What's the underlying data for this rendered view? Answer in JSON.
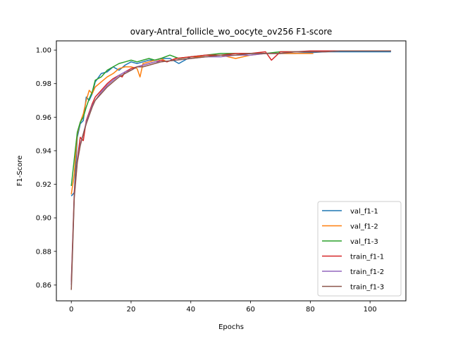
{
  "chart_data": {
    "type": "line",
    "title": "ovary-Antral_follicle_wo_oocyte_ov256 F1-score",
    "xlabel": "Epochs",
    "ylabel": "F1-Score",
    "xlim": [
      -5,
      112
    ],
    "ylim": [
      0.8505,
      1.0055
    ],
    "x_ticks": [
      0,
      20,
      40,
      60,
      80,
      100
    ],
    "x_tick_labels": [
      "0",
      "20",
      "40",
      "60",
      "80",
      "100"
    ],
    "y_ticks": [
      0.86,
      0.88,
      0.9,
      0.92,
      0.94,
      0.96,
      0.98,
      1.0
    ],
    "y_tick_labels": [
      "0.86",
      "0.88",
      "0.90",
      "0.92",
      "0.94",
      "0.96",
      "0.98",
      "1.00"
    ],
    "grid": false,
    "legend_position": "lower right",
    "series": [
      {
        "name": "val_f1-1",
        "color": "#1f77b4",
        "points": [
          [
            0,
            0.913
          ],
          [
            1,
            0.915
          ],
          [
            2,
            0.948
          ],
          [
            3,
            0.956
          ],
          [
            4,
            0.958
          ],
          [
            5,
            0.972
          ],
          [
            6,
            0.97
          ],
          [
            7,
            0.974
          ],
          [
            8,
            0.981
          ],
          [
            10,
            0.986
          ],
          [
            12,
            0.987
          ],
          [
            14,
            0.99
          ],
          [
            16,
            0.988
          ],
          [
            18,
            0.991
          ],
          [
            20,
            0.993
          ],
          [
            22,
            0.992
          ],
          [
            24,
            0.993
          ],
          [
            26,
            0.994
          ],
          [
            28,
            0.994
          ],
          [
            30,
            0.995
          ],
          [
            33,
            0.995
          ],
          [
            36,
            0.992
          ],
          [
            40,
            0.996
          ],
          [
            45,
            0.996
          ],
          [
            50,
            0.997
          ],
          [
            55,
            0.997
          ],
          [
            60,
            0.998
          ],
          [
            65,
            0.998
          ],
          [
            70,
            0.998
          ],
          [
            75,
            0.998
          ],
          [
            80,
            0.9985
          ],
          [
            85,
            0.999
          ],
          [
            90,
            0.999
          ],
          [
            95,
            0.999
          ],
          [
            100,
            0.999
          ],
          [
            107,
            0.999
          ]
        ]
      },
      {
        "name": "val_f1-2",
        "color": "#ff7f0e",
        "points": [
          [
            0,
            0.914
          ],
          [
            1,
            0.926
          ],
          [
            2,
            0.95
          ],
          [
            3,
            0.957
          ],
          [
            4,
            0.962
          ],
          [
            5,
            0.97
          ],
          [
            6,
            0.976
          ],
          [
            7,
            0.974
          ],
          [
            8,
            0.978
          ],
          [
            10,
            0.981
          ],
          [
            12,
            0.984
          ],
          [
            14,
            0.986
          ],
          [
            16,
            0.989
          ],
          [
            18,
            0.99
          ],
          [
            20,
            0.99
          ],
          [
            22,
            0.989
          ],
          [
            23,
            0.984
          ],
          [
            24,
            0.992
          ],
          [
            26,
            0.993
          ],
          [
            28,
            0.994
          ],
          [
            30,
            0.995
          ],
          [
            32,
            0.993
          ],
          [
            35,
            0.995
          ],
          [
            40,
            0.996
          ],
          [
            45,
            0.996
          ],
          [
            50,
            0.997
          ],
          [
            55,
            0.995
          ],
          [
            60,
            0.997
          ],
          [
            65,
            0.998
          ],
          [
            70,
            0.998
          ],
          [
            75,
            0.998
          ],
          [
            81,
            0.998
          ]
        ]
      },
      {
        "name": "val_f1-3",
        "color": "#2ca02c",
        "points": [
          [
            0,
            0.919
          ],
          [
            1,
            0.935
          ],
          [
            2,
            0.951
          ],
          [
            3,
            0.957
          ],
          [
            4,
            0.96
          ],
          [
            5,
            0.966
          ],
          [
            6,
            0.971
          ],
          [
            7,
            0.975
          ],
          [
            8,
            0.982
          ],
          [
            10,
            0.984
          ],
          [
            12,
            0.988
          ],
          [
            14,
            0.99
          ],
          [
            16,
            0.992
          ],
          [
            18,
            0.993
          ],
          [
            20,
            0.994
          ],
          [
            22,
            0.993
          ],
          [
            24,
            0.994
          ],
          [
            26,
            0.995
          ],
          [
            28,
            0.994
          ],
          [
            30,
            0.995
          ],
          [
            33,
            0.997
          ],
          [
            36,
            0.995
          ],
          [
            40,
            0.996
          ],
          [
            45,
            0.997
          ],
          [
            50,
            0.998
          ],
          [
            55,
            0.998
          ],
          [
            60,
            0.998
          ],
          [
            65,
            0.998
          ],
          [
            70,
            0.999
          ],
          [
            75,
            0.999
          ]
        ]
      },
      {
        "name": "train_f1-1",
        "color": "#d62728",
        "points": [
          [
            0,
            0.862
          ],
          [
            1,
            0.915
          ],
          [
            2,
            0.935
          ],
          [
            3,
            0.948
          ],
          [
            4,
            0.946
          ],
          [
            5,
            0.958
          ],
          [
            6,
            0.963
          ],
          [
            7,
            0.968
          ],
          [
            8,
            0.972
          ],
          [
            10,
            0.976
          ],
          [
            12,
            0.98
          ],
          [
            14,
            0.983
          ],
          [
            16,
            0.985
          ],
          [
            17,
            0.984
          ],
          [
            18,
            0.987
          ],
          [
            20,
            0.989
          ],
          [
            22,
            0.99
          ],
          [
            24,
            0.991
          ],
          [
            26,
            0.992
          ],
          [
            28,
            0.993
          ],
          [
            30,
            0.994
          ],
          [
            32,
            0.993
          ],
          [
            35,
            0.995
          ],
          [
            40,
            0.996
          ],
          [
            45,
            0.997
          ],
          [
            50,
            0.997
          ],
          [
            55,
            0.998
          ],
          [
            60,
            0.998
          ],
          [
            65,
            0.999
          ],
          [
            67,
            0.994
          ],
          [
            70,
            0.999
          ],
          [
            75,
            0.999
          ],
          [
            80,
            0.9995
          ],
          [
            85,
            0.9995
          ],
          [
            90,
            0.9995
          ],
          [
            95,
            0.9995
          ],
          [
            100,
            0.9995
          ],
          [
            107,
            0.9995
          ]
        ]
      },
      {
        "name": "train_f1-2",
        "color": "#9467bd",
        "points": [
          [
            0,
            0.86
          ],
          [
            1,
            0.913
          ],
          [
            2,
            0.934
          ],
          [
            3,
            0.944
          ],
          [
            4,
            0.95
          ],
          [
            5,
            0.957
          ],
          [
            6,
            0.962
          ],
          [
            7,
            0.967
          ],
          [
            8,
            0.97
          ],
          [
            10,
            0.975
          ],
          [
            12,
            0.979
          ],
          [
            14,
            0.982
          ],
          [
            16,
            0.985
          ],
          [
            18,
            0.987
          ],
          [
            20,
            0.988
          ],
          [
            22,
            0.99
          ],
          [
            24,
            0.991
          ],
          [
            26,
            0.992
          ],
          [
            28,
            0.993
          ],
          [
            30,
            0.993
          ],
          [
            35,
            0.994
          ],
          [
            40,
            0.995
          ],
          [
            45,
            0.996
          ],
          [
            50,
            0.996
          ],
          [
            55,
            0.997
          ],
          [
            60,
            0.997
          ],
          [
            65,
            0.998
          ],
          [
            70,
            0.998
          ],
          [
            75,
            0.999
          ],
          [
            80,
            0.999
          ],
          [
            85,
            0.999
          ],
          [
            90,
            0.9995
          ],
          [
            95,
            0.9995
          ],
          [
            100,
            0.9995
          ],
          [
            107,
            0.9995
          ]
        ]
      },
      {
        "name": "train_f1-3",
        "color": "#8c564b",
        "points": [
          [
            0,
            0.857
          ],
          [
            1,
            0.912
          ],
          [
            2,
            0.933
          ],
          [
            3,
            0.943
          ],
          [
            4,
            0.95
          ],
          [
            5,
            0.956
          ],
          [
            6,
            0.961
          ],
          [
            7,
            0.966
          ],
          [
            8,
            0.97
          ],
          [
            10,
            0.974
          ],
          [
            12,
            0.978
          ],
          [
            14,
            0.981
          ],
          [
            16,
            0.984
          ],
          [
            18,
            0.986
          ],
          [
            20,
            0.988
          ],
          [
            22,
            0.99
          ],
          [
            24,
            0.99
          ],
          [
            26,
            0.991
          ],
          [
            28,
            0.992
          ],
          [
            30,
            0.993
          ],
          [
            35,
            0.994
          ],
          [
            40,
            0.995
          ],
          [
            45,
            0.996
          ],
          [
            50,
            0.997
          ],
          [
            55,
            0.997
          ],
          [
            60,
            0.998
          ],
          [
            65,
            0.998
          ],
          [
            70,
            0.998
          ],
          [
            75,
            0.999
          ],
          [
            80,
            0.999
          ],
          [
            85,
            0.999
          ],
          [
            90,
            0.9995
          ],
          [
            95,
            0.9995
          ],
          [
            100,
            0.9995
          ],
          [
            107,
            0.9995
          ]
        ]
      }
    ]
  }
}
